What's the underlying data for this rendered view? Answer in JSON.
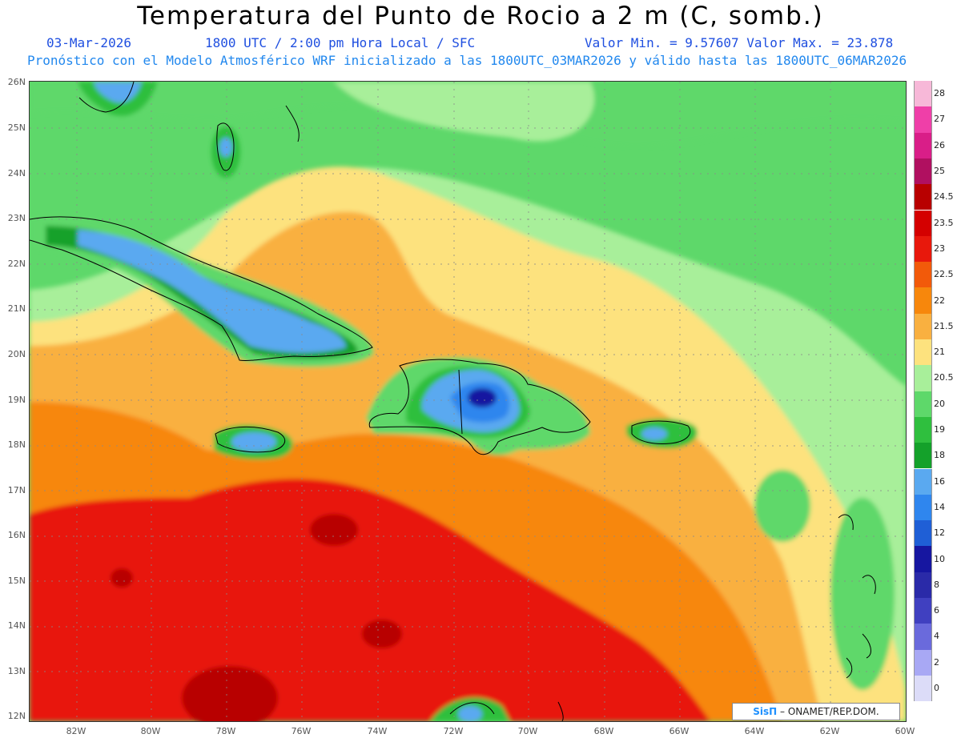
{
  "header": {
    "title": "Temperatura del Punto de Rocio a 2 m (C, somb.)",
    "date": "03-Mar-2026",
    "time": "1800 UTC / 2:00 pm Hora Local / SFC",
    "minmax": "Valor Min. = 9.57607  Valor Max. = 23.878",
    "model": "Pronóstico con el Modelo Atmosférico WRF inicializado a las 1800UTC_03MAR2026 y válido hasta las  1800UTC_06MAR2026"
  },
  "axes": {
    "lat_labels": [
      "26N",
      "25N",
      "24N",
      "23N",
      "22N",
      "21N",
      "20N",
      "19N",
      "18N",
      "17N",
      "16N",
      "15N",
      "14N",
      "13N",
      "12N"
    ],
    "lon_labels": [
      "82W",
      "80W",
      "78W",
      "76W",
      "74W",
      "72W",
      "70W",
      "68W",
      "66W",
      "64W",
      "62W",
      "60W"
    ]
  },
  "colorbar": {
    "labels": [
      "28",
      "27",
      "26",
      "25",
      "24.5",
      "23.5",
      "23",
      "22.5",
      "22",
      "21.5",
      "21",
      "20.5",
      "20",
      "19",
      "18",
      "16",
      "14",
      "12",
      "10",
      "8",
      "6",
      "4",
      "2",
      "0"
    ],
    "colors": [
      "#f7b8d8",
      "#ef3fa8",
      "#d91e88",
      "#b01060",
      "#b80000",
      "#d40000",
      "#e8180c",
      "#f25a0a",
      "#f7870c",
      "#f9b040",
      "#fde27e",
      "#a8ef9a",
      "#5ed86a",
      "#2fbf3e",
      "#14a12a",
      "#5aa9f0",
      "#2f86ee",
      "#1f5fd6",
      "#1616a0",
      "#2a2aa8",
      "#4040c0",
      "#6a6adc",
      "#a8a8f4",
      "#dcdcf8"
    ]
  },
  "colors": {
    "very_dry": "#1616a0",
    "dry": "#2f86ee",
    "moist_green": "#5ed86a",
    "light_green": "#a8ef9a",
    "yellow": "#fde27e",
    "orange": "#f7870c",
    "red": "#e8180c"
  },
  "credit": {
    "sis": "SisΠ",
    "org": " – ONAMET/REP.DOM."
  }
}
